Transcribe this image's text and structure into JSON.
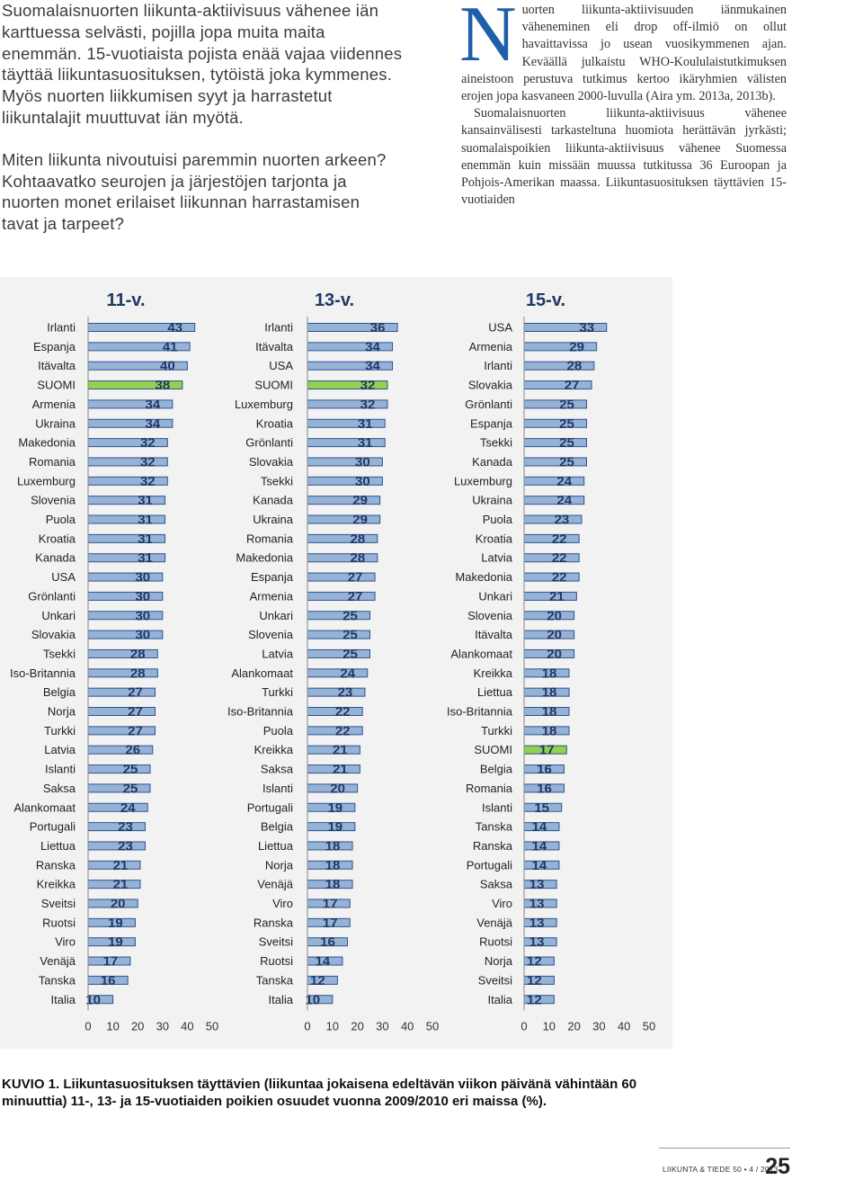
{
  "intro": {
    "lines": [
      "Suomalaisnuorten liikunta-aktiivisuus vähenee iän",
      "karttuessa selvästi, pojilla jopa muita maita",
      "enemmän. 15-vuotiaista pojista enää vajaa viidennes",
      "täyttää liikuntasuosituksen, tytöistä joka kymmenes.",
      "Myös nuorten liikkumisen syyt ja harrastetut",
      "liikuntalajit muuttuvat iän myötä."
    ],
    "question_lines": [
      "Miten liikunta nivoutuisi paremmin nuorten arkeen?",
      "Kohtaavatko seurojen ja järjestöjen tarjonta ja",
      "nuorten monet erilaiset liikunnan harrastamisen",
      "tavat ja tarpeet?"
    ]
  },
  "body": {
    "dropcap": "N",
    "paragraph1": "uorten liikunta-aktiivisuuden iänmukainen väheneminen eli drop off-ilmiö on ollut havaittavissa jo usean vuosikymmenen ajan. Keväällä julkaistu WHO-Koululaistutkimuksen aineistoon perustuva tutkimus kertoo ikäryhmien välisten erojen jopa kasvaneen 2000-luvulla (Aira ym. 2013a, 2013b).",
    "paragraph2": "Suomalaisnuorten liikunta-aktiivisuus vähenee kansainvälisesti tarkasteltuna huomiota herättävän jyrkästi; suomalaispoikien liikunta-aktiivisuus vähenee Suomessa enemmän kuin missään muussa tutkitussa 36 Euroopan ja Pohjois-Amerikan maassa. Liikuntasuosituksen täyttävien 15-vuotiaiden"
  },
  "chart_data": [
    {
      "type": "bar",
      "orientation": "horizontal",
      "title": "11-v.",
      "categories": [
        "Irlanti",
        "Espanja",
        "Itävalta",
        "SUOMI",
        "Armenia",
        "Ukraina",
        "Makedonia",
        "Romania",
        "Luxemburg",
        "Slovenia",
        "Puola",
        "Kroatia",
        "Kanada",
        "USA",
        "Grönlanti",
        "Unkari",
        "Slovakia",
        "Tsekki",
        "Iso-Britannia",
        "Belgia",
        "Norja",
        "Turkki",
        "Latvia",
        "Islanti",
        "Saksa",
        "Alankomaat",
        "Portugali",
        "Liettua",
        "Ranska",
        "Kreikka",
        "Sveitsi",
        "Ruotsi",
        "Viro",
        "Venäjä",
        "Tanska",
        "Italia"
      ],
      "values": [
        43,
        41,
        40,
        38,
        34,
        34,
        32,
        32,
        32,
        31,
        31,
        31,
        31,
        30,
        30,
        30,
        30,
        28,
        28,
        27,
        27,
        27,
        26,
        25,
        25,
        24,
        23,
        23,
        21,
        21,
        20,
        19,
        19,
        17,
        16,
        10
      ],
      "highlight": "SUOMI",
      "xlim": [
        0,
        50
      ],
      "xticks": [
        "0",
        "10",
        "20",
        "30",
        "40",
        "50"
      ],
      "grid": false
    },
    {
      "type": "bar",
      "orientation": "horizontal",
      "title": "13-v.",
      "categories": [
        "Irlanti",
        "Itävalta",
        "USA",
        "SUOMI",
        "Luxemburg",
        "Kroatia",
        "Grönlanti",
        "Slovakia",
        "Tsekki",
        "Kanada",
        "Ukraina",
        "Romania",
        "Makedonia",
        "Espanja",
        "Armenia",
        "Unkari",
        "Slovenia",
        "Latvia",
        "Alankomaat",
        "Turkki",
        "Iso-Britannia",
        "Puola",
        "Kreikka",
        "Saksa",
        "Islanti",
        "Portugali",
        "Belgia",
        "Liettua",
        "Norja",
        "Venäjä",
        "Viro",
        "Ranska",
        "Sveitsi",
        "Ruotsi",
        "Tanska",
        "Italia"
      ],
      "values": [
        36,
        34,
        34,
        32,
        32,
        31,
        31,
        30,
        30,
        29,
        29,
        28,
        28,
        27,
        27,
        25,
        25,
        25,
        24,
        23,
        22,
        22,
        21,
        21,
        20,
        19,
        19,
        18,
        18,
        18,
        17,
        17,
        16,
        14,
        12,
        10
      ],
      "highlight": "SUOMI",
      "xlim": [
        0,
        50
      ],
      "xticks": [
        "0",
        "10",
        "20",
        "30",
        "40",
        "50"
      ],
      "grid": false
    },
    {
      "type": "bar",
      "orientation": "horizontal",
      "title": "15-v.",
      "categories": [
        "USA",
        "Armenia",
        "Irlanti",
        "Slovakia",
        "Grönlanti",
        "Espanja",
        "Tsekki",
        "Kanada",
        "Luxemburg",
        "Ukraina",
        "Puola",
        "Kroatia",
        "Latvia",
        "Makedonia",
        "Unkari",
        "Slovenia",
        "Itävalta",
        "Alankomaat",
        "Kreikka",
        "Liettua",
        "Iso-Britannia",
        "Turkki",
        "SUOMI",
        "Belgia",
        "Romania",
        "Islanti",
        "Tanska",
        "Ranska",
        "Portugali",
        "Saksa",
        "Viro",
        "Venäjä",
        "Ruotsi",
        "Norja",
        "Sveitsi",
        "Italia"
      ],
      "values": [
        33,
        29,
        28,
        27,
        25,
        25,
        25,
        25,
        24,
        24,
        23,
        22,
        22,
        22,
        21,
        20,
        20,
        20,
        18,
        18,
        18,
        18,
        17,
        16,
        16,
        15,
        14,
        14,
        14,
        13,
        13,
        13,
        13,
        12,
        12,
        12
      ],
      "highlight": "SUOMI",
      "xlim": [
        0,
        50
      ],
      "xticks": [
        "0",
        "10",
        "20",
        "30",
        "40",
        "50"
      ],
      "grid": false
    }
  ],
  "colors": {
    "bar_fill": "#95b3d7",
    "bar_stroke": "#2f528f",
    "highlight_fill": "#92d050",
    "value_label": "#1f3864",
    "chart_bg": "#f2f2f2",
    "dropcap": "#1d5fa8"
  },
  "caption": {
    "label": "KUVIO 1.",
    "text": "Liikuntasuosituksen täyttävien (liikuntaa jokaisena edeltävän viikon päivänä vähintään 60 minuuttia) 11-, 13- ja 15-vuotiaiden poikien osuudet vuonna 2009/2010 eri maissa (%)."
  },
  "footer": {
    "journal": "LIIKUNTA & TIEDE 50 • 4 / 2013",
    "page_number": "25"
  }
}
